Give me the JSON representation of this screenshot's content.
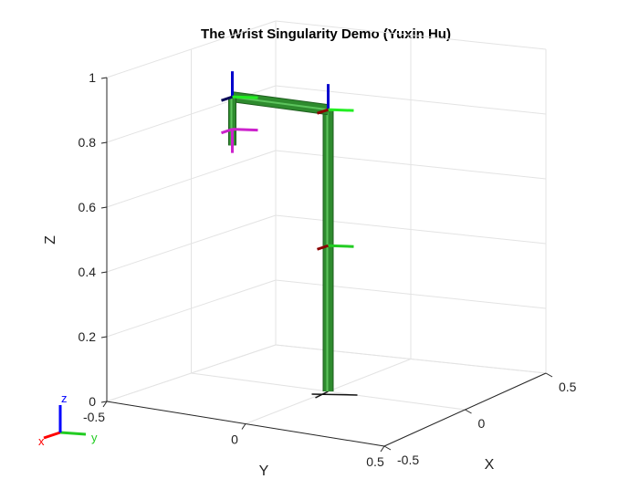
{
  "chart_data": {
    "type": "3d-line",
    "title": "The Wrist Singularity Demo (Yuxin Hu)",
    "xlabel": "X",
    "ylabel": "Y",
    "zlabel": "Z",
    "xlim": [
      -0.5,
      0.5
    ],
    "ylim": [
      -0.5,
      0.5
    ],
    "zlim": [
      0,
      1
    ],
    "x_ticks": [
      "-0.5",
      "0",
      "0.5"
    ],
    "y_ticks": [
      "-0.5",
      "0",
      "0.5"
    ],
    "z_ticks": [
      "0",
      "0.2",
      "0.4",
      "0.6",
      "0.8",
      "1"
    ],
    "grid": true,
    "robot": {
      "link_color": "#2e8b2e",
      "joints": [
        {
          "x": 0,
          "y": 0,
          "z": 0
        },
        {
          "x": 0,
          "y": 0,
          "z": 0.45
        },
        {
          "x": 0,
          "y": 0,
          "z": 0.87
        },
        {
          "x": 0,
          "y": -0.35,
          "z": 0.87
        },
        {
          "x": 0,
          "y": -0.35,
          "z": 0.77
        },
        {
          "x": 0,
          "y": -0.35,
          "z": 0.72
        }
      ]
    },
    "orientation_triad": {
      "labels": [
        "x",
        "y",
        "z"
      ],
      "colors": [
        "#ff0000",
        "#22cc22",
        "#0000ff"
      ]
    }
  }
}
